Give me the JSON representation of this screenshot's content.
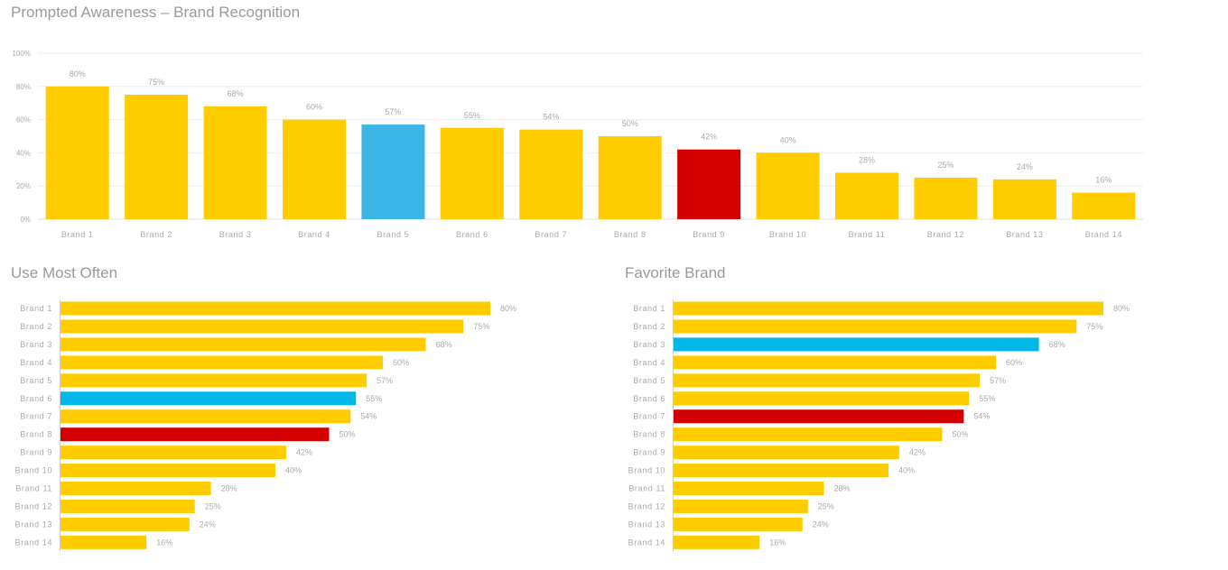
{
  "colors": {
    "default": "#FFCC00",
    "highlight_blue": "#3BB4E6",
    "highlight_cyan": "#00B7E8",
    "highlight_red": "#D40000",
    "text": "#aaaaaa",
    "title": "#9a9a9a",
    "grid": "#eeeeee"
  },
  "chart_data": [
    {
      "type": "bar",
      "title": "Prompted Awareness – Brand Recognition",
      "categories": [
        "Brand 1",
        "Brand 2",
        "Brand 3",
        "Brand 4",
        "Brand 5",
        "Brand 6",
        "Brand 7",
        "Brand 8",
        "Brand 9",
        "Brand 10",
        "Brand 11",
        "Brand 12",
        "Brand 13",
        "Brand 14"
      ],
      "values": [
        80,
        75,
        68,
        60,
        57,
        55,
        54,
        50,
        42,
        40,
        28,
        25,
        24,
        16
      ],
      "value_labels": [
        "80%",
        "75%",
        "68%",
        "60%",
        "57%",
        "55%",
        "54%",
        "50%",
        "42%",
        "40%",
        "28%",
        "25%",
        "24%",
        "16%"
      ],
      "highlights": {
        "4": "highlight_blue",
        "8": "highlight_red"
      },
      "ylim": [
        0,
        100
      ],
      "yticks": [
        "0%",
        "20%",
        "40%",
        "60%",
        "80%",
        "100%"
      ],
      "grid": true,
      "orientation": "vertical"
    },
    {
      "type": "bar",
      "title": "Use Most Often",
      "categories": [
        "Brand 1",
        "Brand 2",
        "Brand 3",
        "Brand 4",
        "Brand 5",
        "Brand 6",
        "Brand 7",
        "Brand 8",
        "Brand 9",
        "Brand 10",
        "Brand 11",
        "Brand 12",
        "Brand 13",
        "Brand 14"
      ],
      "values": [
        80,
        75,
        68,
        60,
        57,
        55,
        54,
        50,
        42,
        40,
        28,
        25,
        24,
        16
      ],
      "value_labels": [
        "80%",
        "75%",
        "68%",
        "60%",
        "57%",
        "55%",
        "54%",
        "50%",
        "42%",
        "40%",
        "28%",
        "25%",
        "24%",
        "16%"
      ],
      "highlights": {
        "5": "highlight_cyan",
        "7": "highlight_red"
      },
      "xlim": [
        0,
        100
      ],
      "grid": false,
      "orientation": "horizontal"
    },
    {
      "type": "bar",
      "title": "Favorite Brand",
      "categories": [
        "Brand 1",
        "Brand 2",
        "Brand 3",
        "Brand 4",
        "Brand 5",
        "Brand 6",
        "Brand 7",
        "Brand 8",
        "Brand 9",
        "Brand 10",
        "Brand 11",
        "Brand 12",
        "Brand 13",
        "Brand 14"
      ],
      "values": [
        80,
        75,
        68,
        60,
        57,
        55,
        54,
        50,
        42,
        40,
        28,
        25,
        24,
        16
      ],
      "value_labels": [
        "80%",
        "75%",
        "68%",
        "60%",
        "57%",
        "55%",
        "54%",
        "50%",
        "42%",
        "40%",
        "28%",
        "25%",
        "24%",
        "16%"
      ],
      "highlights": {
        "2": "highlight_cyan",
        "6": "highlight_red"
      },
      "xlim": [
        0,
        100
      ],
      "grid": false,
      "orientation": "horizontal"
    }
  ]
}
